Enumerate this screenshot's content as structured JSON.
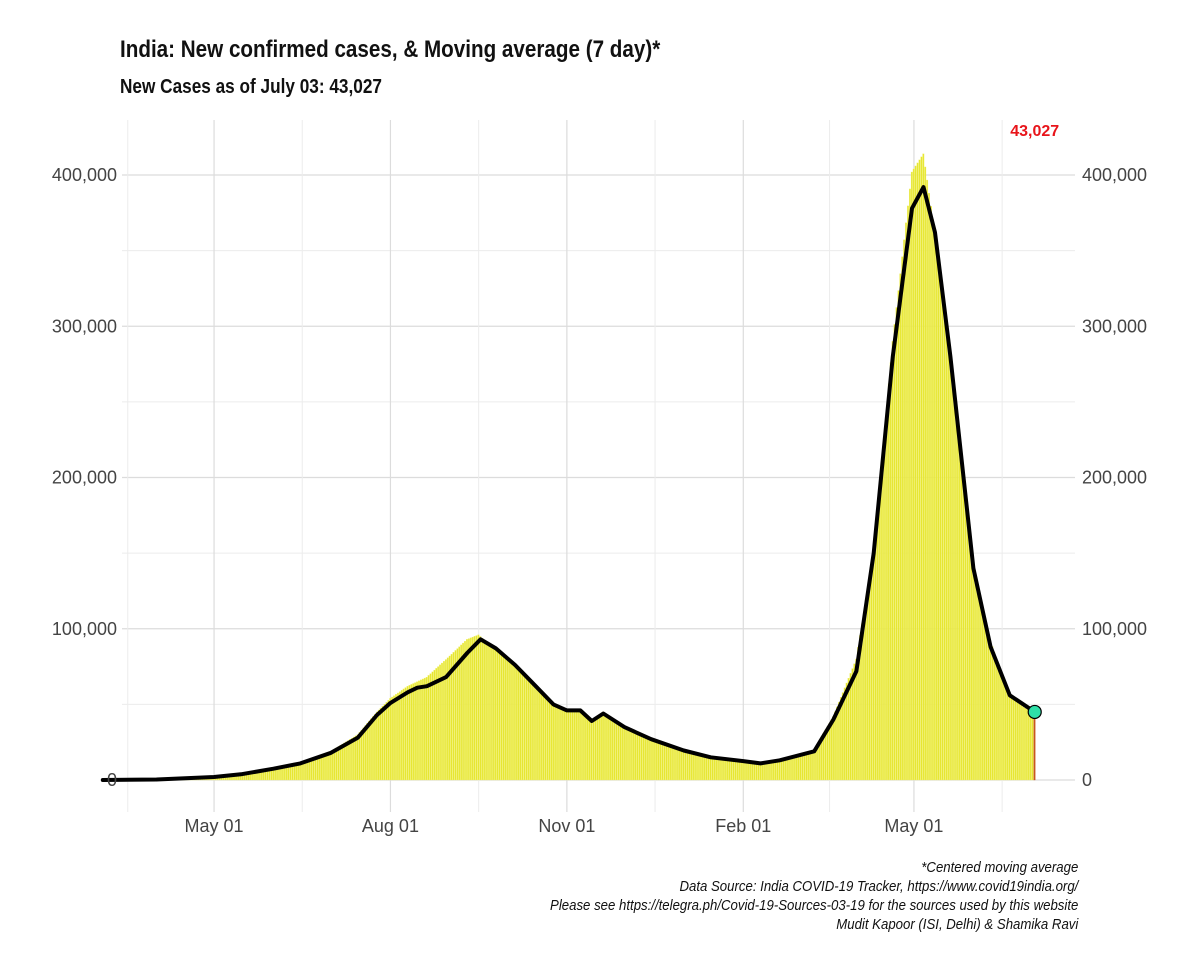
{
  "header": {
    "title": "India: New confirmed cases, & Moving average (7 day)*",
    "subtitle": "New Cases as of July 03: 43,027"
  },
  "caption": [
    "*Centered moving average",
    "Data Source: India COVID-19 Tracker, https://www.covid19india.org/",
    "Please see https://telegra.ph/Covid-19-Sources-03-19 for the sources used by this website",
    "Mudit Kapoor (ISI, Delhi) & Shamika Ravi"
  ],
  "colors": {
    "bars": "#e6e632",
    "last_bar": "#c8561e",
    "moving_average": "#000000",
    "last_point": "#2fe0a8",
    "last_label": "#e8141a",
    "grid": "#dcdcdc"
  },
  "chart_data": {
    "type": "bar",
    "title": "India: New confirmed cases, & Moving average (7 day)*",
    "subtitle": "New Cases as of July 03: 43,027",
    "xlabel": "",
    "ylabel": "",
    "x_range": [
      "2020-03-04",
      "2021-07-03"
    ],
    "ylim": [
      0,
      420000
    ],
    "y_ticks": [
      0,
      100000,
      200000,
      300000,
      400000
    ],
    "y_tick_labels": [
      "0",
      "100,000",
      "200,000",
      "300,000",
      "400,000"
    ],
    "x_ticks": [
      "2020-05-01",
      "2020-08-01",
      "2020-11-01",
      "2021-02-01",
      "2021-05-01"
    ],
    "x_tick_labels": [
      "May 01",
      "Aug 01",
      "Nov 01",
      "Feb 01",
      "May 01"
    ],
    "grid": true,
    "y_axis_both_sides": true,
    "last_value": 43027,
    "last_value_label": "43,027",
    "series": [
      {
        "type": "bar",
        "points": [
          [
            "2020-03-04",
            0
          ],
          [
            "2020-04-01",
            500
          ],
          [
            "2020-05-01",
            2500
          ],
          [
            "2020-05-15",
            4000
          ],
          [
            "2020-06-01",
            8000
          ],
          [
            "2020-06-15",
            11000
          ],
          [
            "2020-07-01",
            19000
          ],
          [
            "2020-07-15",
            30000
          ],
          [
            "2020-07-25",
            45000
          ],
          [
            "2020-08-01",
            54000
          ],
          [
            "2020-08-10",
            62000
          ],
          [
            "2020-08-20",
            68000
          ],
          [
            "2020-09-01",
            82000
          ],
          [
            "2020-09-10",
            93000
          ],
          [
            "2020-09-16",
            96000
          ],
          [
            "2020-09-25",
            86000
          ],
          [
            "2020-10-05",
            75000
          ],
          [
            "2020-10-15",
            63000
          ],
          [
            "2020-10-25",
            50000
          ],
          [
            "2020-11-01",
            46000
          ],
          [
            "2020-11-08",
            45000
          ],
          [
            "2020-11-14",
            38000
          ],
          [
            "2020-11-20",
            45000
          ],
          [
            "2020-12-01",
            35000
          ],
          [
            "2020-12-15",
            26000
          ],
          [
            "2021-01-01",
            19000
          ],
          [
            "2021-01-15",
            15000
          ],
          [
            "2021-02-01",
            12000
          ],
          [
            "2021-02-10",
            11000
          ],
          [
            "2021-02-20",
            13000
          ],
          [
            "2021-03-01",
            16000
          ],
          [
            "2021-03-10",
            20000
          ],
          [
            "2021-03-20",
            42000
          ],
          [
            "2021-04-01",
            80000
          ],
          [
            "2021-04-10",
            150000
          ],
          [
            "2021-04-20",
            290000
          ],
          [
            "2021-04-30",
            402000
          ],
          [
            "2021-05-06",
            414000
          ],
          [
            "2021-05-12",
            362000
          ],
          [
            "2021-05-20",
            280000
          ],
          [
            "2021-06-01",
            140000
          ],
          [
            "2021-06-10",
            92000
          ],
          [
            "2021-06-20",
            55000
          ],
          [
            "2021-07-03",
            43027
          ]
        ]
      },
      {
        "name": "Moving average (7 day)*",
        "type": "line",
        "points": [
          [
            "2020-03-04",
            0
          ],
          [
            "2020-04-01",
            300
          ],
          [
            "2020-05-01",
            2000
          ],
          [
            "2020-05-15",
            3800
          ],
          [
            "2020-06-01",
            7500
          ],
          [
            "2020-06-15",
            11000
          ],
          [
            "2020-07-01",
            18000
          ],
          [
            "2020-07-15",
            28000
          ],
          [
            "2020-07-25",
            43000
          ],
          [
            "2020-08-01",
            51000
          ],
          [
            "2020-08-10",
            58000
          ],
          [
            "2020-08-15",
            61000
          ],
          [
            "2020-08-20",
            62000
          ],
          [
            "2020-08-30",
            68000
          ],
          [
            "2020-09-10",
            84000
          ],
          [
            "2020-09-17",
            93000
          ],
          [
            "2020-09-25",
            87000
          ],
          [
            "2020-10-05",
            76000
          ],
          [
            "2020-10-15",
            63000
          ],
          [
            "2020-10-25",
            50000
          ],
          [
            "2020-11-01",
            46000
          ],
          [
            "2020-11-08",
            46000
          ],
          [
            "2020-11-14",
            39000
          ],
          [
            "2020-11-20",
            44000
          ],
          [
            "2020-12-01",
            35000
          ],
          [
            "2020-12-15",
            27000
          ],
          [
            "2021-01-01",
            19500
          ],
          [
            "2021-01-15",
            15000
          ],
          [
            "2021-02-01",
            12500
          ],
          [
            "2021-02-10",
            11000
          ],
          [
            "2021-02-20",
            13000
          ],
          [
            "2021-03-01",
            16000
          ],
          [
            "2021-03-10",
            19000
          ],
          [
            "2021-03-20",
            40000
          ],
          [
            "2021-04-01",
            72000
          ],
          [
            "2021-04-10",
            150000
          ],
          [
            "2021-04-20",
            280000
          ],
          [
            "2021-04-30",
            378000
          ],
          [
            "2021-05-06",
            392000
          ],
          [
            "2021-05-12",
            362000
          ],
          [
            "2021-05-20",
            280000
          ],
          [
            "2021-06-01",
            140000
          ],
          [
            "2021-06-10",
            88000
          ],
          [
            "2021-06-20",
            56000
          ],
          [
            "2021-07-03",
            45000
          ]
        ]
      }
    ]
  }
}
